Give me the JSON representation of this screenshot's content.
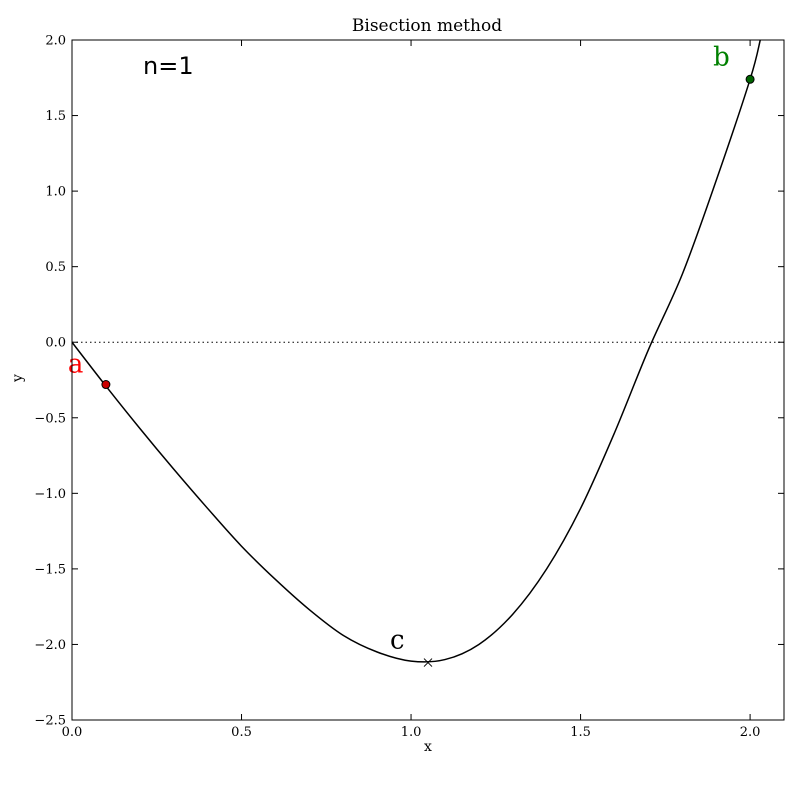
{
  "chart_data": {
    "type": "line",
    "title": "Bisection method",
    "xlabel": "x",
    "ylabel": "y",
    "xlim": [
      0.0,
      2.1
    ],
    "ylim": [
      -2.5,
      2.0
    ],
    "x_ticks": [
      0.0,
      0.5,
      1.0,
      1.5,
      2.0
    ],
    "x_tick_labels": [
      "0.0",
      "0.5",
      "1.0",
      "1.5",
      "2.0"
    ],
    "y_ticks": [
      -2.5,
      -2.0,
      -1.5,
      -1.0,
      -0.5,
      0.0,
      0.5,
      1.0,
      1.5,
      2.0
    ],
    "y_tick_labels": [
      "−2.5",
      "−2.0",
      "−1.5",
      "−1.0",
      "−0.5",
      "0.0",
      "0.5",
      "1.0",
      "1.5",
      "2.0"
    ],
    "grid": false,
    "iteration_label": "n=1",
    "curve": {
      "x": [
        0.0,
        0.1,
        0.2,
        0.3,
        0.4,
        0.5,
        0.6,
        0.7,
        0.8,
        0.9,
        1.0,
        1.1,
        1.2,
        1.3,
        1.4,
        1.5,
        1.6,
        1.7,
        1.8,
        1.9,
        2.0,
        2.03
      ],
      "y": [
        0.0,
        -0.29,
        -0.57,
        -0.84,
        -1.1,
        -1.35,
        -1.57,
        -1.77,
        -1.94,
        -2.05,
        -2.11,
        -2.1,
        -2.0,
        -1.8,
        -1.5,
        -1.1,
        -0.6,
        -0.05,
        0.45,
        1.07,
        1.74,
        2.0
      ]
    },
    "zero_line": {
      "y": 0.0,
      "style": "dotted"
    },
    "points": [
      {
        "label": "a",
        "x": 0.1,
        "y": -0.28,
        "color": "#cc0000",
        "label_color": "#ff0000",
        "marker": "circle"
      },
      {
        "label": "b",
        "x": 2.0,
        "y": 1.74,
        "color": "#006400",
        "label_color": "#008000",
        "marker": "circle"
      },
      {
        "label": "c",
        "x": 1.05,
        "y": -2.12,
        "color": "#000000",
        "label_color": "#000000",
        "marker": "x"
      }
    ]
  }
}
